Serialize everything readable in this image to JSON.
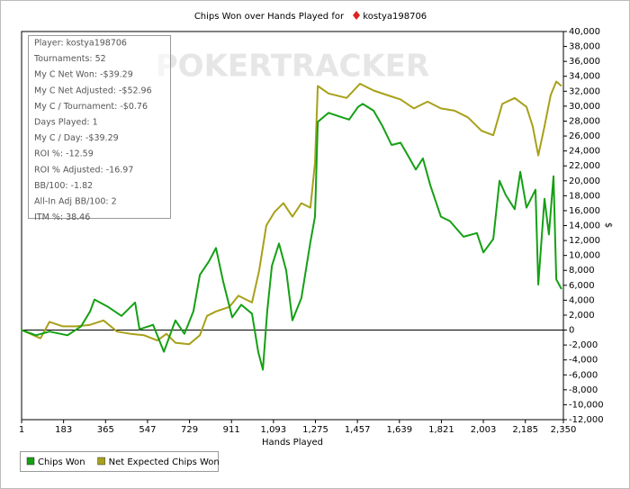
{
  "chart_data": {
    "type": "line",
    "title": "Chips Won over Hands Played for",
    "player": "kostya198706",
    "watermark": "POKERTRACKER",
    "x_label": "Hands Played",
    "y_label": "$",
    "annotations": [
      "Player: kostya198706",
      "Tournaments: 52",
      "My C Net Won: -$39.29",
      "My C Net Adjusted: -$52.96",
      "My C / Tournament: -$0.76",
      "Days Played: 1",
      "My C / Day: -$39.29",
      "ROI %: -12.59",
      "ROI % Adjusted: -16.97",
      "BB/100: -1.82",
      "All-In Adj BB/100: 2",
      "ITM %: 38.46"
    ],
    "xlim": [
      1,
      2350
    ],
    "ylim": [
      -12000,
      40000
    ],
    "xticks": [
      1,
      183,
      365,
      547,
      729,
      911,
      {
        "value": 1093,
        "label": "1,093"
      },
      {
        "value": 1275,
        "label": "1,275"
      },
      {
        "value": 1457,
        "label": "1,457"
      },
      {
        "value": 1639,
        "label": "1,639"
      },
      {
        "value": 1821,
        "label": "1,821"
      },
      {
        "value": 2003,
        "label": "2,003"
      },
      {
        "value": 2185,
        "label": "2,185"
      },
      {
        "value": 2350,
        "label": "2,350"
      }
    ],
    "yticks": [
      {
        "value": 40000,
        "label": "40,000"
      },
      {
        "value": 38000,
        "label": "38,000"
      },
      {
        "value": 36000,
        "label": "36,000"
      },
      {
        "value": 34000,
        "label": "34,000"
      },
      {
        "value": 32000,
        "label": "32,000"
      },
      {
        "value": 30000,
        "label": "30,000"
      },
      {
        "value": 28000,
        "label": "28,000"
      },
      {
        "value": 26000,
        "label": "26,000"
      },
      {
        "value": 24000,
        "label": "24,000"
      },
      {
        "value": 22000,
        "label": "22,000"
      },
      {
        "value": 20000,
        "label": "20,000"
      },
      {
        "value": 18000,
        "label": "18,000"
      },
      {
        "value": 16000,
        "label": "16,000"
      },
      {
        "value": 14000,
        "label": "14,000"
      },
      {
        "value": 12000,
        "label": "12,000"
      },
      {
        "value": 10000,
        "label": "10,000"
      },
      {
        "value": 8000,
        "label": "8,000"
      },
      {
        "value": 6000,
        "label": "6,000"
      },
      {
        "value": 4000,
        "label": "4,000"
      },
      {
        "value": 2000,
        "label": "2,000"
      },
      0,
      {
        "value": -2000,
        "label": "-2,000"
      },
      {
        "value": -4000,
        "label": "-4,000"
      },
      {
        "value": -6000,
        "label": "-6,000"
      },
      {
        "value": -8000,
        "label": "-8,000"
      },
      {
        "value": -10000,
        "label": "-10,000"
      },
      {
        "value": -12000,
        "label": "-12,000"
      }
    ],
    "grid": false,
    "legend": "bottom-left",
    "series": [
      {
        "name": "Chips Won",
        "color": "#14a014",
        "x": [
          1,
          63,
          122,
          200,
          259,
          298,
          317,
          376,
          434,
          493,
          512,
          571,
          618,
          668,
          707,
          746,
          774,
          813,
          844,
          875,
          914,
          953,
          1000,
          1027,
          1047,
          1066,
          1086,
          1117,
          1148,
          1175,
          1214,
          1253,
          1273,
          1285,
          1332,
          1390,
          1421,
          1460,
          1480,
          1527,
          1566,
          1605,
          1644,
          1683,
          1710,
          1741,
          1773,
          1819,
          1858,
          1917,
          1975,
          2003,
          2046,
          2073,
          2100,
          2139,
          2163,
          2190,
          2229,
          2241,
          2268,
          2287,
          2307,
          2319,
          2342
        ],
        "values": [
          0,
          -700,
          -200,
          -700,
          500,
          2500,
          4100,
          3100,
          1900,
          3700,
          100,
          700,
          -2900,
          1300,
          -500,
          2500,
          7400,
          9200,
          11000,
          6500,
          1700,
          3400,
          2200,
          -2900,
          -5300,
          2500,
          8600,
          11600,
          8000,
          1300,
          4300,
          11800,
          15200,
          27900,
          29100,
          28500,
          28200,
          29900,
          30300,
          29400,
          27300,
          24800,
          25100,
          23000,
          21500,
          23000,
          19400,
          15200,
          14600,
          12500,
          13000,
          10400,
          12200,
          20000,
          18100,
          16200,
          21200,
          16400,
          18800,
          6100,
          17600,
          12800,
          20600,
          6800,
          5500
        ]
      },
      {
        "name": "Net Expected Chips Won",
        "color": "#a8a019",
        "x": [
          1,
          83,
          122,
          180,
          239,
          298,
          356,
          415,
          473,
          532,
          590,
          629,
          668,
          727,
          774,
          805,
          844,
          902,
          941,
          1000,
          1031,
          1062,
          1097,
          1136,
          1175,
          1214,
          1253,
          1273,
          1285,
          1332,
          1410,
          1468,
          1527,
          1585,
          1644,
          1702,
          1761,
          1819,
          1878,
          1936,
          1995,
          2046,
          2085,
          2139,
          2190,
          2217,
          2241,
          2268,
          2295,
          2319,
          2342
        ],
        "values": [
          0,
          -1100,
          1100,
          500,
          500,
          700,
          1300,
          -200,
          -500,
          -700,
          -1400,
          -500,
          -1700,
          -1900,
          -700,
          1900,
          2500,
          3100,
          4600,
          3700,
          8000,
          14000,
          15800,
          17000,
          15200,
          17000,
          16400,
          22400,
          32700,
          31700,
          31100,
          33000,
          32100,
          31500,
          30900,
          29700,
          30600,
          29700,
          29400,
          28500,
          26700,
          26100,
          30300,
          31100,
          29900,
          27300,
          23400,
          27300,
          31500,
          33300,
          32700
        ]
      }
    ]
  }
}
